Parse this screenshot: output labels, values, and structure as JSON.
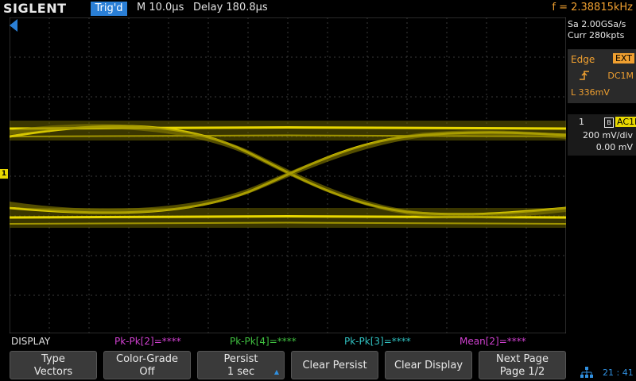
{
  "header": {
    "logo": "SIGLENT",
    "trig_status": "Trig'd",
    "timebase": "M 10.0μs",
    "delay": "Delay 180.8μs",
    "frequency": "f = 2.38815kHz"
  },
  "acquisition": {
    "sample_rate": "Sa 2.00GSa/s",
    "memory": "Curr 280kpts"
  },
  "trigger": {
    "type": "Edge",
    "source": "EXT",
    "slope_icon": "rising-edge-icon",
    "coupling": "DC1M",
    "level": "L  336mV"
  },
  "channel1": {
    "number": "1",
    "bw_icon": "B",
    "coupling": "AC1M",
    "vdiv": "200 mV/div",
    "offset": "0.00 mV",
    "marker": "1",
    "color": "#e8d800"
  },
  "measurements": {
    "label": "DISPLAY",
    "items": [
      "Pk-Pk[2]=****",
      "Pk-Pk[4]=****",
      "Pk-Pk[3]=****",
      "Mean[2]=****"
    ]
  },
  "softkeys": [
    {
      "line1": "Type",
      "line2": "Vectors"
    },
    {
      "line1": "Color-Grade",
      "line2": "Off"
    },
    {
      "line1": "Persist",
      "line2": "1 sec"
    },
    {
      "line1": "Clear Persist",
      "line2": ""
    },
    {
      "line1": "Clear Display",
      "line2": ""
    },
    {
      "line1": "Next Page",
      "line2": "Page 1/2"
    }
  ],
  "status": {
    "clock": "21 : 41",
    "network_icon": "network-icon"
  }
}
